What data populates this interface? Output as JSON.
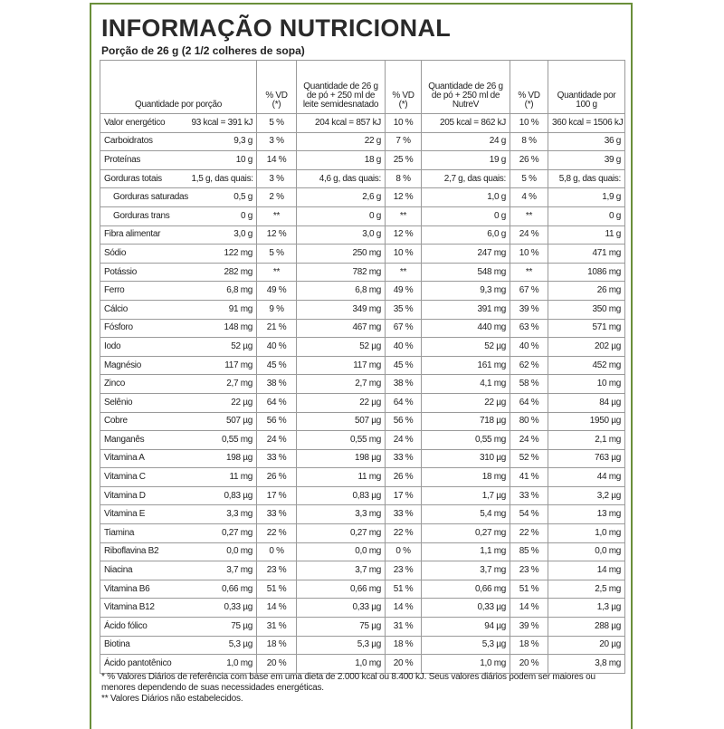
{
  "header": {
    "title": "INFORMAÇÃO NUTRICIONAL",
    "subtitle": "Porção de 26 g (2 1/2 colheres de sopa)"
  },
  "table": {
    "header": [
      "Quantidade por porção",
      "% VD (*)",
      "Quantidade de 26 g de pó + 250 ml de leite semidesnatado",
      "% VD (*)",
      "Quantidade de 26 g de pó + 250 ml de NutreV",
      "% VD (*)",
      "Quantidade por 100 g"
    ],
    "rows": [
      [
        "Valor energético",
        "93 kcal = 391 kJ",
        "5 %",
        "204 kcal = 857 kJ",
        "10 %",
        "205 kcal = 862 kJ",
        "10 %",
        "360 kcal = 1506 kJ"
      ],
      [
        "Carboidratos",
        "9,3 g",
        "3 %",
        "22 g",
        "7 %",
        "24 g",
        "8 %",
        "36 g"
      ],
      [
        "Proteínas",
        "10 g",
        "14 %",
        "18 g",
        "25 %",
        "19 g",
        "26 %",
        "39 g"
      ],
      [
        "Gorduras totais",
        "1,5 g, das quais:",
        "3 %",
        "4,6 g, das quais:",
        "8 %",
        "2,7 g, das quais:",
        "5 %",
        "5,8 g, das quais:"
      ],
      [
        "Gorduras saturadas",
        "0,5 g",
        "2 %",
        "2,6 g",
        "12 %",
        "1,0 g",
        "4 %",
        "1,9 g"
      ],
      [
        "Gorduras trans",
        "0 g",
        "**",
        "0 g",
        "**",
        "0 g",
        "**",
        "0 g"
      ],
      [
        "Fibra alimentar",
        "3,0 g",
        "12 %",
        "3,0 g",
        "12 %",
        "6,0 g",
        "24 %",
        "11 g"
      ],
      [
        "Sódio",
        "122 mg",
        "5 %",
        "250 mg",
        "10 %",
        "247 mg",
        "10 %",
        "471 mg"
      ],
      [
        "Potássio",
        "282 mg",
        "**",
        "782 mg",
        "**",
        "548 mg",
        "**",
        "1086 mg"
      ],
      [
        "Ferro",
        "6,8 mg",
        "49 %",
        "6,8 mg",
        "49 %",
        "9,3 mg",
        "67 %",
        "26 mg"
      ],
      [
        "Cálcio",
        "91 mg",
        "9 %",
        "349 mg",
        "35 %",
        "391 mg",
        "39 %",
        "350 mg"
      ],
      [
        "Fósforo",
        "148 mg",
        "21 %",
        "467 mg",
        "67 %",
        "440 mg",
        "63 %",
        "571 mg"
      ],
      [
        "Iodo",
        "52 µg",
        "40 %",
        "52 µg",
        "40 %",
        "52 µg",
        "40 %",
        "202 µg"
      ],
      [
        "Magnésio",
        "117 mg",
        "45 %",
        "117 mg",
        "45 %",
        "161 mg",
        "62 %",
        "452 mg"
      ],
      [
        "Zinco",
        "2,7 mg",
        "38 %",
        "2,7 mg",
        "38 %",
        "4,1 mg",
        "58 %",
        "10 mg"
      ],
      [
        "Selênio",
        "22 µg",
        "64 %",
        "22 µg",
        "64 %",
        "22 µg",
        "64 %",
        "84 µg"
      ],
      [
        "Cobre",
        "507 µg",
        "56 %",
        "507 µg",
        "56 %",
        "718 µg",
        "80 %",
        "1950 µg"
      ],
      [
        "Manganês",
        "0,55 mg",
        "24 %",
        "0,55 mg",
        "24 %",
        "0,55 mg",
        "24 %",
        "2,1 mg"
      ],
      [
        "Vitamina A",
        "198 µg",
        "33 %",
        "198 µg",
        "33 %",
        "310 µg",
        "52 %",
        "763 µg"
      ],
      [
        "Vitamina C",
        "11 mg",
        "26 %",
        "11 mg",
        "26 %",
        "18 mg",
        "41 %",
        "44 mg"
      ],
      [
        "Vitamina D",
        "0,83 µg",
        "17 %",
        "0,83 µg",
        "17 %",
        "1,7 µg",
        "33 %",
        "3,2 µg"
      ],
      [
        "Vitamina E",
        "3,3 mg",
        "33 %",
        "3,3 mg",
        "33 %",
        "5,4 mg",
        "54 %",
        "13 mg"
      ],
      [
        "Tiamina",
        "0,27 mg",
        "22 %",
        "0,27 mg",
        "22 %",
        "0,27 mg",
        "22 %",
        "1,0 mg"
      ],
      [
        "Riboflavina B2",
        "0,0 mg",
        "0 %",
        "0,0 mg",
        "0 %",
        "1,1 mg",
        "85 %",
        "0,0 mg"
      ],
      [
        "Niacina",
        "3,7 mg",
        "23 %",
        "3,7 mg",
        "23 %",
        "3,7 mg",
        "23 %",
        "14 mg"
      ],
      [
        "Vitamina B6",
        "0,66 mg",
        "51 %",
        "0,66 mg",
        "51 %",
        "0,66 mg",
        "51 %",
        "2,5 mg"
      ],
      [
        "Vitamina B12",
        "0,33 µg",
        "14 %",
        "0,33 µg",
        "14 %",
        "0,33 µg",
        "14 %",
        "1,3 µg"
      ],
      [
        "Ácido fólico",
        "75 µg",
        "31 %",
        "75 µg",
        "31 %",
        "94 µg",
        "39 %",
        "288 µg"
      ],
      [
        "Biotina",
        "5,3 µg",
        "18 %",
        "5,3 µg",
        "18 %",
        "5,3 µg",
        "18 %",
        "20 µg"
      ],
      [
        "Ácido pantotênico",
        "1,0 mg",
        "20 %",
        "1,0 mg",
        "20 %",
        "1,0 mg",
        "20 %",
        "3,8 mg"
      ]
    ]
  },
  "footnotes": [
    "* % Valores Diários de referência com base em uma dieta de 2.000 kcal ou 8.400 kJ. Seus valores diários podem ser maiores ou menores dependendo de suas necessidades energéticas.",
    "** Valores Diários não estabelecidos."
  ]
}
